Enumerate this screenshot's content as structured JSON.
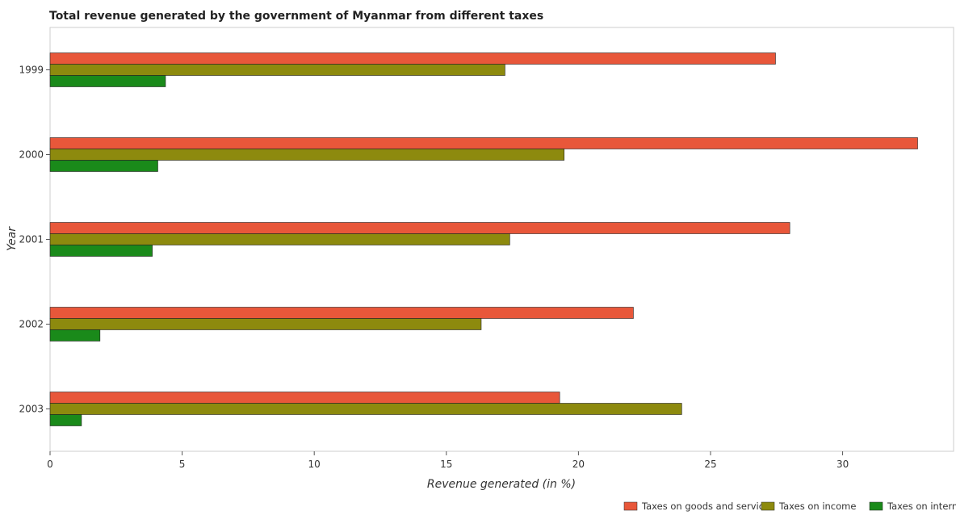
{
  "chart_data": {
    "type": "bar",
    "orientation": "horizontal",
    "title": "Total revenue generated by the government of Myanmar from different taxes",
    "xlabel": "Revenue generated (in %)",
    "ylabel": "Year",
    "categories": [
      "1999",
      "2000",
      "2001",
      "2002",
      "2003"
    ],
    "xlim": [
      0,
      34.2
    ],
    "xticks": [
      0,
      5,
      10,
      15,
      20,
      25,
      30
    ],
    "grid": false,
    "legend_position": "bottom-right",
    "series": [
      {
        "name": "Taxes on goods and services",
        "color": "#e8573a",
        "values": [
          27.46,
          32.84,
          28.0,
          22.08,
          19.29
        ]
      },
      {
        "name": "Taxes on income",
        "color": "#8d8a0e",
        "values": [
          17.22,
          19.46,
          17.4,
          16.32,
          23.91
        ]
      },
      {
        "name": "Taxes on international trade",
        "color": "#1a8a1a",
        "values": [
          4.37,
          4.08,
          3.87,
          1.89,
          1.19
        ]
      }
    ]
  }
}
